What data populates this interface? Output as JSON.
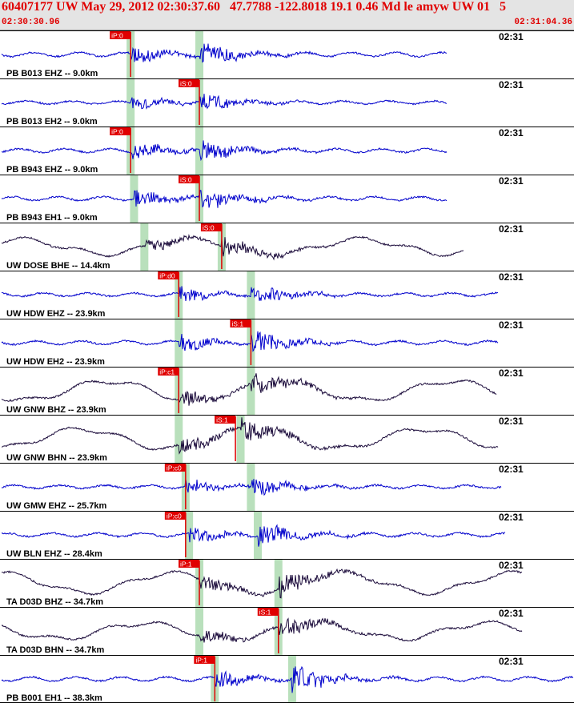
{
  "title_bar": {
    "title": "60407177 UW May 29, 2012 02:30:37.60   47.7788 -122.8018 19.1 0.46 Md le amyw UW 01   5",
    "start_time": "02:30:30.96",
    "end_time": "02:31:04.36"
  },
  "chart_data": {
    "type": "line",
    "title": "60407177 UW May 29, 2012 02:30:37.60   47.7788 -122.8018 19.1 0.46 Md le amyw UW 01   5",
    "xlim": [
      "02:30:30.96",
      "02:31:04.36"
    ],
    "x_unit": "seconds after 02:30:30.96",
    "colors": {
      "short_period": "#0000cc",
      "broadband": "#1a0a3a",
      "pick": "#e00000",
      "window": "#b9e0bc",
      "title": "#e00000"
    },
    "panels": [
      {
        "label": "PB B013 EHZ -- 9.0km",
        "time_label": "02:31",
        "pick": "iP:0",
        "pick_s": 7.6,
        "window_s": 7.6,
        "phase_s": 11.6,
        "amp": 1.0,
        "trace_end_s": 26.0,
        "color": "blue"
      },
      {
        "label": "PB B013 EH2 -- 9.0km",
        "time_label": "02:31",
        "pick": "iS:0",
        "pick_s": 11.6,
        "window_s": 7.6,
        "phase_s": 11.6,
        "amp": 0.7,
        "trace_end_s": 26.0,
        "color": "blue"
      },
      {
        "label": "PB B943 EHZ -- 9.0km",
        "time_label": "02:31",
        "pick": "iP:0",
        "pick_s": 7.6,
        "window_s": 7.6,
        "phase_s": 11.6,
        "amp": 0.9,
        "trace_end_s": 26.0,
        "color": "blue"
      },
      {
        "label": "PB B943 EH1 -- 9.0km",
        "time_label": "02:31",
        "pick": "iS:0",
        "pick_s": 11.6,
        "window_s": 7.8,
        "phase_s": 11.6,
        "amp": 0.9,
        "trace_end_s": 26.0,
        "color": "blue"
      },
      {
        "label": "UW DOSE BHE -- 14.4km",
        "time_label": "02:31",
        "pick": "iS:0",
        "pick_s": 12.9,
        "window_s": 8.4,
        "phase_s": 12.9,
        "amp": 0.75,
        "trace_end_s": 27.0,
        "color": "dark"
      },
      {
        "label": "UW HDW EHZ -- 23.9km",
        "time_label": "02:31",
        "pick": "iP:d0",
        "pick_s": 10.4,
        "window_s": 10.4,
        "phase_s": 14.6,
        "amp": 0.8,
        "trace_end_s": 29.0,
        "color": "blue"
      },
      {
        "label": "UW HDW EH2 -- 23.9km",
        "time_label": "02:31",
        "pick": "iS:1",
        "pick_s": 14.6,
        "window_s": 10.4,
        "phase_s": 14.6,
        "amp": 0.9,
        "trace_end_s": 29.0,
        "color": "blue"
      },
      {
        "label": "UW GNW BHZ -- 23.9km",
        "time_label": "02:31",
        "pick": "iP:c1",
        "pick_s": 10.4,
        "window_s": 10.4,
        "phase_s": 14.6,
        "amp": 1.0,
        "trace_end_s": 28.9,
        "color": "dark"
      },
      {
        "label": "UW GNW BHN -- 23.9km",
        "time_label": "02:31",
        "pick": "iS:1",
        "pick_s": 13.7,
        "window_s": 10.4,
        "phase_s": 14.0,
        "amp": 1.0,
        "trace_end_s": 29.0,
        "color": "dark"
      },
      {
        "label": "UW GMW EHZ -- 25.7km",
        "time_label": "02:31",
        "pick": "iP:c0",
        "pick_s": 10.8,
        "window_s": 10.8,
        "phase_s": 14.6,
        "amp": 0.75,
        "trace_end_s": 29.2,
        "color": "blue"
      },
      {
        "label": "UW BLN EHZ -- 28.4km",
        "time_label": "02:31",
        "pick": "iP:c0",
        "pick_s": 10.8,
        "window_s": 11.0,
        "phase_s": 15.0,
        "amp": 0.9,
        "trace_end_s": 29.4,
        "color": "blue"
      },
      {
        "label": "TA D03D BHZ -- 34.7km",
        "time_label": "02:31",
        "pick": "iP:1",
        "pick_s": 11.6,
        "window_s": 11.6,
        "phase_s": 16.2,
        "amp": 1.0,
        "trace_end_s": 30.4,
        "color": "dark"
      },
      {
        "label": "TA D03D BHN -- 34.7km",
        "time_label": "02:31",
        "pick": "iS:1",
        "pick_s": 16.2,
        "window_s": 11.6,
        "phase_s": 16.2,
        "amp": 0.8,
        "trace_end_s": 30.4,
        "color": "dark"
      },
      {
        "label": "PB B001 EH1 -- 38.3km",
        "time_label": "02:31",
        "pick": "iP:1",
        "pick_s": 12.5,
        "window_s": 12.5,
        "phase_s": 17.0,
        "amp": 1.0,
        "trace_end_s": 33.4,
        "color": "blue"
      }
    ]
  }
}
